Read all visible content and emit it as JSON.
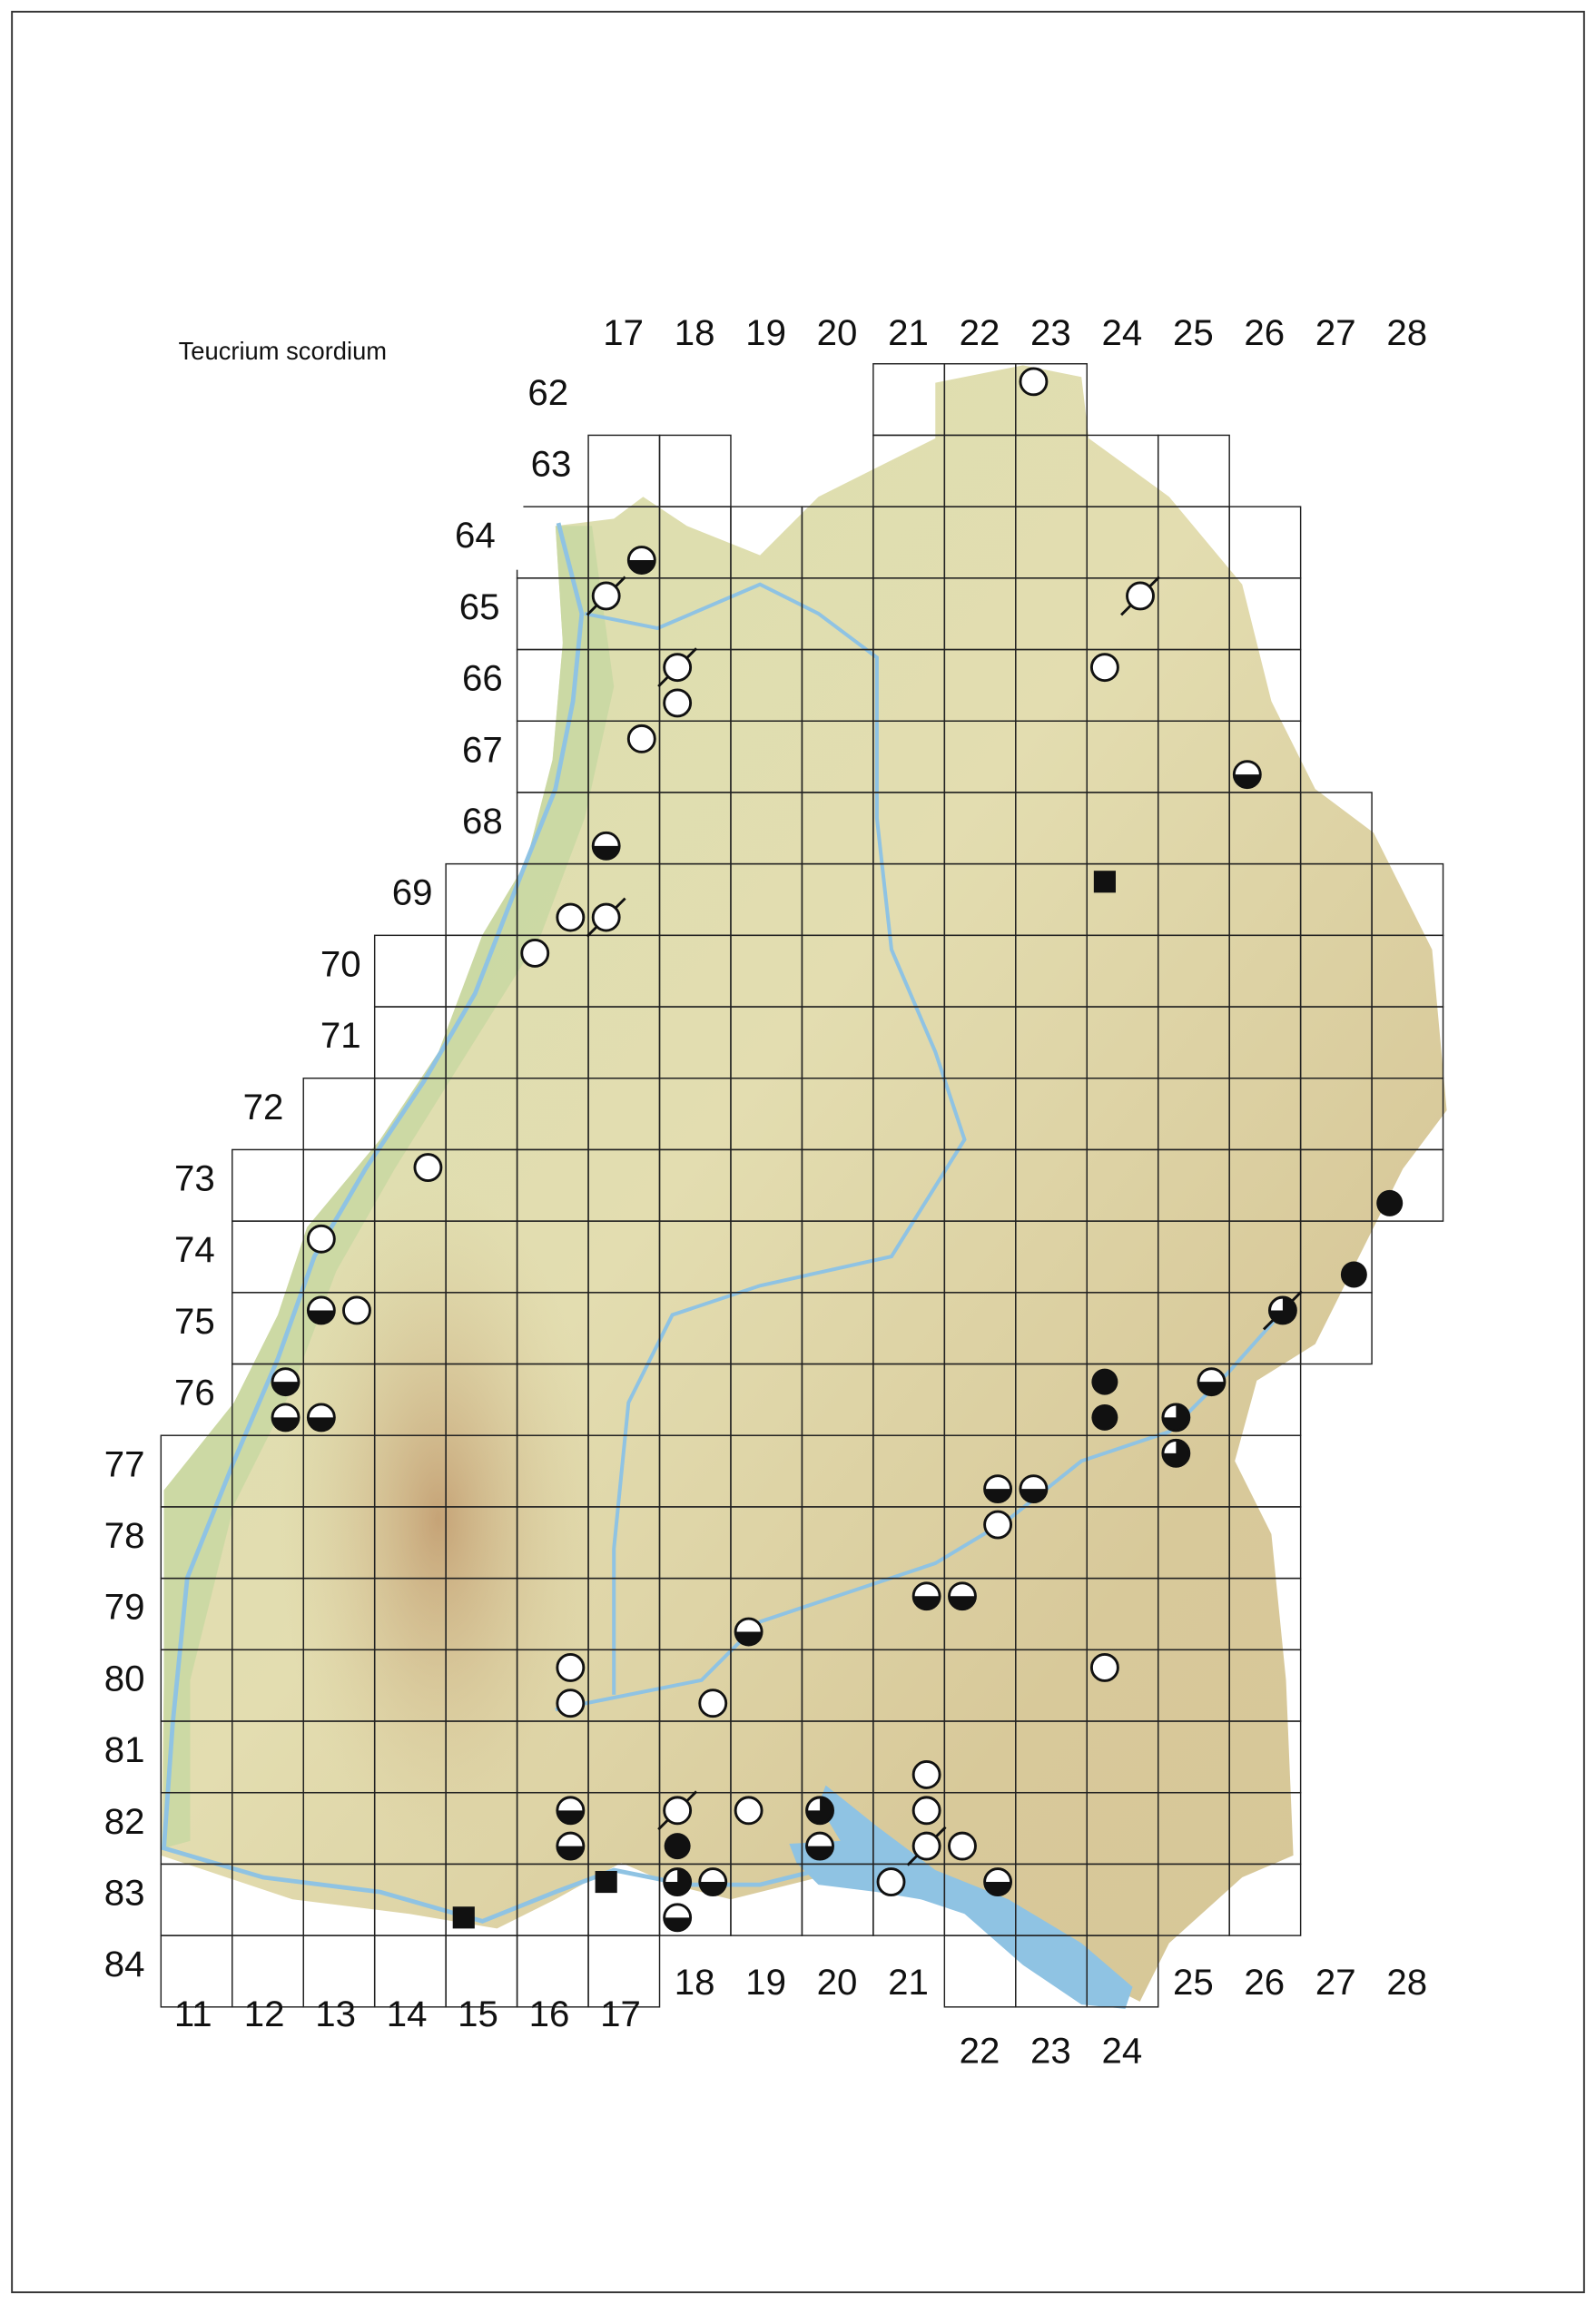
{
  "title": "Teucrium scordium",
  "top_column_labels": [
    "17",
    "18",
    "19",
    "20",
    "21",
    "22",
    "23",
    "24",
    "25",
    "26",
    "27",
    "28"
  ],
  "bottom_column_labels_west": [
    "11",
    "12",
    "13",
    "14",
    "15",
    "16",
    "17"
  ],
  "bottom_column_labels_middle": [
    "18",
    "19",
    "20",
    "21"
  ],
  "bottom_column_labels_lake": [
    "22",
    "23",
    "24"
  ],
  "bottom_column_labels_east": [
    "25",
    "26",
    "27",
    "28"
  ],
  "row_labels": [
    "62",
    "63",
    "64",
    "65",
    "66",
    "67",
    "68",
    "69",
    "70",
    "71",
    "72",
    "73",
    "74",
    "75",
    "76",
    "77",
    "78",
    "79",
    "80",
    "81",
    "82",
    "83",
    "84"
  ],
  "colors": {
    "symbol_fill": "#111111",
    "water": "#8fc3e3",
    "lowland": "#c9d9a6",
    "upland": "#d8c99a",
    "grid": "#222222"
  },
  "symbol_types": [
    "open-circle",
    "open-circle-slashed",
    "half-filled-circle",
    "three-quarter-filled-circle",
    "three-quarter-filled-circle-slashed",
    "filled-circle",
    "filled-square"
  ],
  "symbols": [
    {
      "col": 23,
      "row": 62,
      "quadrant": "NW",
      "type": "open-circle"
    },
    {
      "col": 17,
      "row": 64,
      "quadrant": "SE",
      "type": "half-filled-circle"
    },
    {
      "col": 17,
      "row": 65,
      "quadrant": "NW",
      "type": "open-circle-slashed"
    },
    {
      "col": 24,
      "row": 65,
      "quadrant": "NE",
      "type": "open-circle-slashed"
    },
    {
      "col": 18,
      "row": 66,
      "quadrant": "NW",
      "type": "open-circle-slashed"
    },
    {
      "col": 18,
      "row": 66,
      "quadrant": "SW",
      "type": "open-circle"
    },
    {
      "col": 24,
      "row": 66,
      "quadrant": "NW",
      "type": "open-circle"
    },
    {
      "col": 17,
      "row": 67,
      "quadrant": "NE",
      "type": "open-circle"
    },
    {
      "col": 26,
      "row": 67,
      "quadrant": "SW",
      "type": "half-filled-circle"
    },
    {
      "col": 17,
      "row": 68,
      "quadrant": "SW",
      "type": "half-filled-circle"
    },
    {
      "col": 24,
      "row": 69,
      "quadrant": "NW",
      "type": "filled-square"
    },
    {
      "col": 16,
      "row": 69,
      "quadrant": "SE",
      "type": "open-circle"
    },
    {
      "col": 17,
      "row": 69,
      "quadrant": "SW",
      "type": "open-circle-slashed"
    },
    {
      "col": 16,
      "row": 70,
      "quadrant": "NW",
      "type": "open-circle"
    },
    {
      "col": 14,
      "row": 73,
      "quadrant": "NE",
      "type": "open-circle"
    },
    {
      "col": 13,
      "row": 74,
      "quadrant": "NW",
      "type": "open-circle"
    },
    {
      "col": 13,
      "row": 75,
      "quadrant": "NW",
      "type": "half-filled-circle"
    },
    {
      "col": 13,
      "row": 75,
      "quadrant": "NE",
      "type": "open-circle"
    },
    {
      "col": 12,
      "row": 76,
      "quadrant": "NE",
      "type": "half-filled-circle"
    },
    {
      "col": 12,
      "row": 76,
      "quadrant": "SE",
      "type": "half-filled-circle"
    },
    {
      "col": 13,
      "row": 76,
      "quadrant": "SW",
      "type": "half-filled-circle"
    },
    {
      "col": 28,
      "row": 73,
      "quadrant": "SW",
      "type": "filled-circle"
    },
    {
      "col": 27,
      "row": 74,
      "quadrant": "SE",
      "type": "filled-circle"
    },
    {
      "col": 26,
      "row": 75,
      "quadrant": "NE",
      "type": "three-quarter-filled-circle-slashed"
    },
    {
      "col": 24,
      "row": 76,
      "quadrant": "NW",
      "type": "filled-circle"
    },
    {
      "col": 24,
      "row": 76,
      "quadrant": "SW",
      "type": "filled-circle"
    },
    {
      "col": 25,
      "row": 76,
      "quadrant": "NE",
      "type": "half-filled-circle"
    },
    {
      "col": 25,
      "row": 76,
      "quadrant": "SW",
      "type": "three-quarter-filled-circle"
    },
    {
      "col": 25,
      "row": 77,
      "quadrant": "NW",
      "type": "three-quarter-filled-circle"
    },
    {
      "col": 22,
      "row": 77,
      "quadrant": "SE",
      "type": "half-filled-circle"
    },
    {
      "col": 23,
      "row": 77,
      "quadrant": "SW",
      "type": "half-filled-circle"
    },
    {
      "col": 22,
      "row": 78,
      "quadrant": "NE",
      "type": "open-circle"
    },
    {
      "col": 21,
      "row": 79,
      "quadrant": "NE",
      "type": "half-filled-circle"
    },
    {
      "col": 22,
      "row": 79,
      "quadrant": "NW",
      "type": "half-filled-circle"
    },
    {
      "col": 19,
      "row": 79,
      "quadrant": "SW",
      "type": "half-filled-circle"
    },
    {
      "col": 16,
      "row": 80,
      "quadrant": "NE",
      "type": "open-circle"
    },
    {
      "col": 16,
      "row": 80,
      "quadrant": "SE",
      "type": "open-circle"
    },
    {
      "col": 18,
      "row": 80,
      "quadrant": "SE",
      "type": "open-circle"
    },
    {
      "col": 24,
      "row": 80,
      "quadrant": "NW",
      "type": "open-circle"
    },
    {
      "col": 21,
      "row": 81,
      "quadrant": "SE",
      "type": "open-circle"
    },
    {
      "col": 16,
      "row": 82,
      "quadrant": "NE",
      "type": "half-filled-circle"
    },
    {
      "col": 16,
      "row": 82,
      "quadrant": "SE",
      "type": "half-filled-circle"
    },
    {
      "col": 18,
      "row": 82,
      "quadrant": "NW",
      "type": "open-circle-slashed"
    },
    {
      "col": 18,
      "row": 82,
      "quadrant": "SW",
      "type": "filled-circle"
    },
    {
      "col": 19,
      "row": 82,
      "quadrant": "NW",
      "type": "open-circle"
    },
    {
      "col": 20,
      "row": 82,
      "quadrant": "NW",
      "type": "three-quarter-filled-circle"
    },
    {
      "col": 20,
      "row": 82,
      "quadrant": "SW",
      "type": "half-filled-circle"
    },
    {
      "col": 21,
      "row": 82,
      "quadrant": "NE",
      "type": "open-circle"
    },
    {
      "col": 21,
      "row": 82,
      "quadrant": "SE",
      "type": "open-circle-slashed"
    },
    {
      "col": 22,
      "row": 82,
      "quadrant": "SW",
      "type": "open-circle"
    },
    {
      "col": 22,
      "row": 83,
      "quadrant": "NE",
      "type": "half-filled-circle"
    },
    {
      "col": 21,
      "row": 83,
      "quadrant": "NW",
      "type": "open-circle"
    },
    {
      "col": 17,
      "row": 83,
      "quadrant": "NW",
      "type": "filled-square"
    },
    {
      "col": 18,
      "row": 83,
      "quadrant": "NW",
      "type": "three-quarter-filled-circle"
    },
    {
      "col": 18,
      "row": 83,
      "quadrant": "NE",
      "type": "half-filled-circle"
    },
    {
      "col": 18,
      "row": 83,
      "quadrant": "SW",
      "type": "half-filled-circle"
    },
    {
      "col": 15,
      "row": 83,
      "quadrant": "SW",
      "type": "filled-square"
    }
  ]
}
